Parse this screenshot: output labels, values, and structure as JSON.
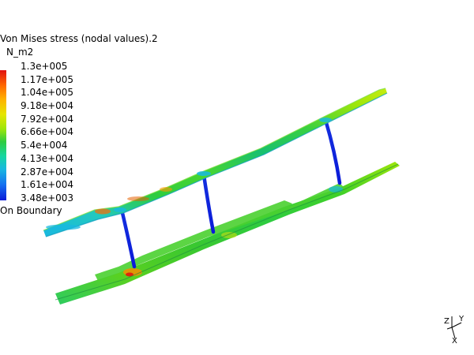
{
  "legend": {
    "title": "Von Mises stress (nodal values).2",
    "unit": "N_m2",
    "values": [
      "1.3e+005",
      "1.17e+005",
      "1.04e+005",
      "9.18e+004",
      "7.92e+004",
      "6.66e+004",
      "5.4e+004",
      "4.13e+004",
      "2.87e+004",
      "1.61e+004",
      "3.48e+003"
    ],
    "footer": "On Boundary",
    "colors": {
      "max": "#e01010",
      "high": "#ff6a00",
      "mid_high": "#e6e600",
      "mid": "#2ecc40",
      "mid_low": "#18b8e0",
      "min": "#0a1ad8"
    }
  },
  "triad": {
    "z_label": "Z",
    "y_label": "Y",
    "x_label": "X"
  }
}
